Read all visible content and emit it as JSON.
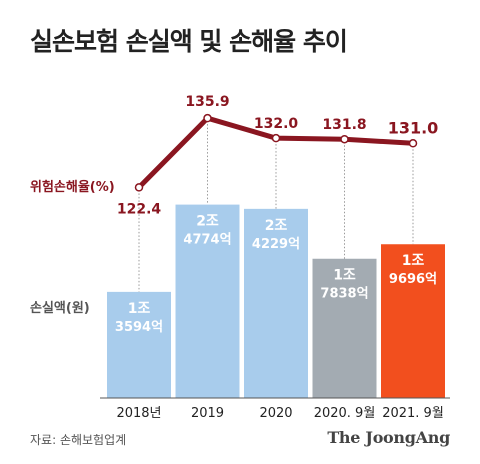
{
  "title": "실손보험 손실액 및 손해율 추이",
  "source": "자료: 손해보험업계",
  "brand": "The JoongAng",
  "colors": {
    "bar_blue": "#a8ccec",
    "bar_gray": "#a3abb2",
    "bar_orange": "#f24f1e",
    "line": "#8a1620",
    "value_label": "#ffffff",
    "axis_text": "#222222"
  },
  "chart_data": [
    {
      "type": "bar",
      "ylabel": "손실액(원)",
      "categories": [
        "2018년",
        "2019",
        "2020",
        "2020. 9월",
        "2021. 9월"
      ],
      "values": [
        1.3594,
        2.4774,
        2.4229,
        1.7838,
        1.9696
      ],
      "value_labels": [
        [
          "1조",
          "3594억"
        ],
        [
          "2조",
          "4774억"
        ],
        [
          "2조",
          "4229억"
        ],
        [
          "1조",
          "7838억"
        ],
        [
          "1조",
          "9696억"
        ]
      ],
      "bar_colors": [
        "#a8ccec",
        "#a8ccec",
        "#a8ccec",
        "#a3abb2",
        "#f24f1e"
      ],
      "ylim": [
        0,
        3.1
      ]
    },
    {
      "type": "line",
      "ylabel": "위험손해율(%)",
      "categories": [
        "2018년",
        "2019",
        "2020",
        "2020. 9월",
        "2021. 9월"
      ],
      "values": [
        122.4,
        135.9,
        132.0,
        131.8,
        131.0
      ],
      "value_labels": [
        "122.4",
        "135.9",
        "132.0",
        "131.8",
        "131.0"
      ],
      "ylim": [
        118,
        141
      ]
    }
  ]
}
